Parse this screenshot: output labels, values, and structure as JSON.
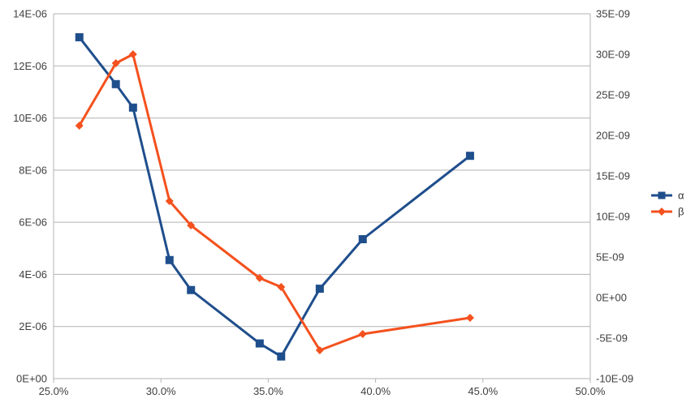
{
  "chart_data": {
    "type": "line",
    "x_axis": {
      "range": [
        0.25,
        0.5
      ],
      "ticks": [
        0.25,
        0.3,
        0.35,
        0.4,
        0.45,
        0.5
      ],
      "tick_labels": [
        "25.0%",
        "30.0%",
        "35.0%",
        "40.0%",
        "45.0%",
        "50.0%"
      ]
    },
    "y_left": {
      "range": [
        0,
        1.4e-05
      ],
      "ticks": [
        0,
        2e-06,
        4e-06,
        6e-06,
        8e-06,
        1e-05,
        1.2e-05,
        1.4e-05
      ],
      "tick_labels": [
        "0E+00",
        "2E-06",
        "4E-06",
        "6E-06",
        "8E-06",
        "10E-06",
        "12E-06",
        "14E-06"
      ]
    },
    "y_right": {
      "range": [
        -1e-08,
        3.5e-08
      ],
      "ticks": [
        -1e-08,
        -5e-09,
        0,
        5e-09,
        1e-08,
        1.5e-08,
        2e-08,
        2.5e-08,
        3e-08,
        3.5e-08
      ],
      "tick_labels": [
        "-10E-09",
        "-5E-09",
        "0E+00",
        "5E-09",
        "10E-09",
        "15E-09",
        "20E-09",
        "25E-09",
        "30E-09",
        "35E-09"
      ]
    },
    "grid": true,
    "legend_position": "right",
    "series": [
      {
        "name": "α",
        "axis": "left",
        "color": "#1f4e8c",
        "marker": "square",
        "points": [
          {
            "x": 0.262,
            "y": 1.31e-05
          },
          {
            "x": 0.279,
            "y": 1.13e-05
          },
          {
            "x": 0.287,
            "y": 1.04e-05
          },
          {
            "x": 0.304,
            "y": 4.55e-06
          },
          {
            "x": 0.314,
            "y": 3.4e-06
          },
          {
            "x": 0.346,
            "y": 1.35e-06
          },
          {
            "x": 0.356,
            "y": 8.5e-07
          },
          {
            "x": 0.374,
            "y": 3.45e-06
          },
          {
            "x": 0.394,
            "y": 5.35e-06
          },
          {
            "x": 0.444,
            "y": 8.55e-06
          }
        ]
      },
      {
        "name": "β",
        "axis": "right",
        "color": "#f4511e",
        "marker": "diamond",
        "points": [
          {
            "x": 0.262,
            "y": 2.12e-08
          },
          {
            "x": 0.279,
            "y": 2.89e-08
          },
          {
            "x": 0.287,
            "y": 3e-08
          },
          {
            "x": 0.304,
            "y": 1.19e-08
          },
          {
            "x": 0.314,
            "y": 8.9e-09
          },
          {
            "x": 0.346,
            "y": 2.4e-09
          },
          {
            "x": 0.356,
            "y": 1.3e-09
          },
          {
            "x": 0.374,
            "y": -6.5e-09
          },
          {
            "x": 0.394,
            "y": -4.5e-09
          },
          {
            "x": 0.444,
            "y": -2.5e-09
          }
        ]
      }
    ]
  }
}
